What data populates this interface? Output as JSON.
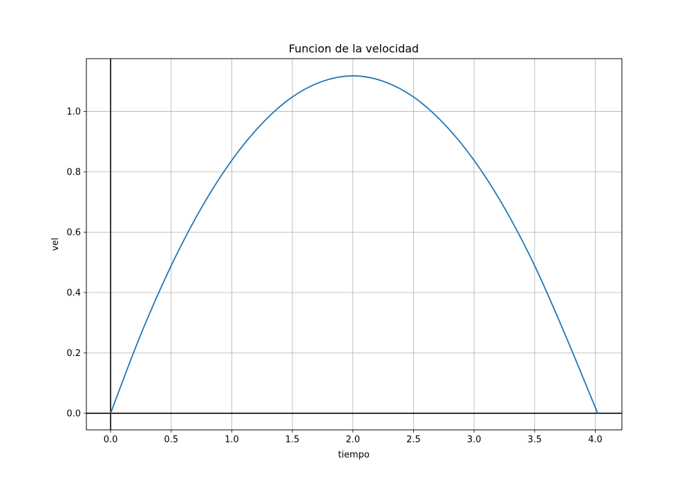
{
  "chart_data": {
    "type": "line",
    "title": "Funcion de la velocidad",
    "xlabel": "tiempo",
    "ylabel": "vel",
    "xlim": [
      -0.2,
      4.22
    ],
    "ylim": [
      -0.055,
      1.175
    ],
    "xticks": [
      0.0,
      0.5,
      1.0,
      1.5,
      2.0,
      2.5,
      3.0,
      3.5,
      4.0
    ],
    "xtick_labels": [
      "0.0",
      "0.5",
      "1.0",
      "1.5",
      "2.0",
      "2.5",
      "3.0",
      "3.5",
      "4.0"
    ],
    "yticks": [
      0.0,
      0.2,
      0.4,
      0.6,
      0.8,
      1.0
    ],
    "ytick_labels": [
      "0.0",
      "0.2",
      "0.4",
      "0.6",
      "0.8",
      "1.0"
    ],
    "grid": true,
    "reference_lines": {
      "x": 0,
      "y": 0
    },
    "series": [
      {
        "color": "#1f77b4",
        "x": [
          0.0,
          0.25,
          0.5,
          0.75,
          1.0,
          1.25,
          1.5,
          1.75,
          2.0,
          2.25,
          2.5,
          2.75,
          3.0,
          3.25,
          3.5,
          3.75,
          4.02
        ],
        "values": [
          0.0,
          0.262,
          0.489,
          0.681,
          0.838,
          0.96,
          1.048,
          1.1,
          1.118,
          1.1,
          1.048,
          0.96,
          0.838,
          0.681,
          0.489,
          0.262,
          0.0
        ]
      }
    ]
  }
}
